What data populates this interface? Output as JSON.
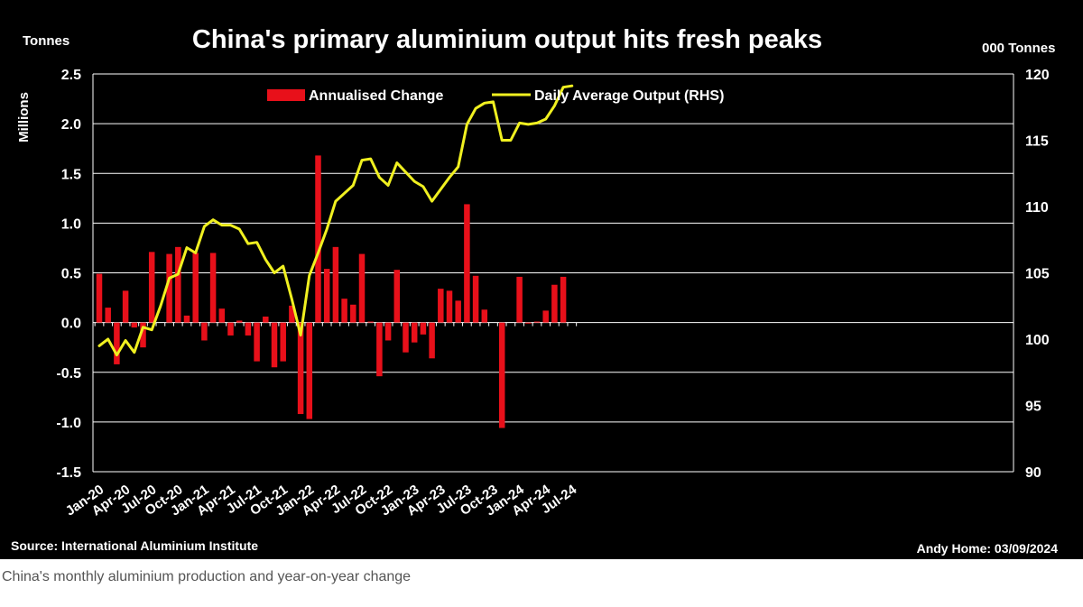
{
  "chart_data": {
    "type": "bar+line",
    "title": "China's primary aluminium output hits fresh peaks",
    "left_axis_unit": "Tonnes",
    "left_axis_label": "Millions",
    "right_axis_unit": "000 Tonnes",
    "ylim_left": [
      -1.5,
      2.5
    ],
    "left_ticks": [
      -1.5,
      -1.0,
      -0.5,
      0.0,
      0.5,
      1.0,
      1.5,
      2.0,
      2.5
    ],
    "ylim_right": [
      90,
      120
    ],
    "right_ticks": [
      90,
      95,
      100,
      105,
      110,
      115,
      120
    ],
    "x_tick_labels": [
      "Jan-20",
      "Apr-20",
      "Jul-20",
      "Oct-20",
      "Jan-21",
      "Apr-21",
      "Jul-21",
      "Oct-21",
      "Jan-22",
      "Apr-22",
      "Jul-22",
      "Oct-22",
      "Jan-23",
      "Apr-23",
      "Jul-23",
      "Oct-23",
      "Jan-24",
      "Apr-24",
      "Jul-24"
    ],
    "months": [
      "Jan-20",
      "Feb-20",
      "Mar-20",
      "Apr-20",
      "May-20",
      "Jun-20",
      "Jul-20",
      "Aug-20",
      "Sep-20",
      "Oct-20",
      "Nov-20",
      "Dec-20",
      "Jan-21",
      "Feb-21",
      "Mar-21",
      "Apr-21",
      "May-21",
      "Jun-21",
      "Jul-21",
      "Aug-21",
      "Sep-21",
      "Oct-21",
      "Nov-21",
      "Dec-21",
      "Jan-22",
      "Feb-22",
      "Mar-22",
      "Apr-22",
      "May-22",
      "Jun-22",
      "Jul-22",
      "Aug-22",
      "Sep-22",
      "Oct-22",
      "Nov-22",
      "Dec-22",
      "Jan-23",
      "Feb-23",
      "Mar-23",
      "Apr-23",
      "May-23",
      "Jun-23",
      "Jul-23",
      "Aug-23",
      "Sep-23",
      "Oct-23",
      "Nov-23",
      "Dec-23",
      "Jan-24",
      "Feb-24",
      "Mar-24",
      "Apr-24",
      "May-24",
      "Jun-24",
      "Jul-24"
    ],
    "series": [
      {
        "name": "Annualised Change",
        "axis": "left",
        "kind": "bar",
        "color": "#e8101a",
        "values": [
          0.49,
          0.15,
          -0.42,
          0.32,
          -0.05,
          -0.25,
          0.71,
          0.0,
          0.69,
          0.76,
          0.07,
          0.7,
          -0.18,
          0.7,
          0.14,
          -0.13,
          0.02,
          -0.13,
          -0.39,
          0.06,
          -0.45,
          -0.39,
          0.17,
          -0.92,
          -0.97,
          1.68,
          0.54,
          0.76,
          0.24,
          0.18,
          0.69,
          0.01,
          -0.54,
          -0.18,
          0.53,
          -0.3,
          -0.2,
          -0.12,
          -0.36,
          0.34,
          0.32,
          0.22,
          1.19,
          0.47,
          0.13,
          0.0,
          -1.06,
          0.0,
          0.46,
          -0.01,
          0.01,
          0.12,
          0.38,
          0.46,
          0.0
        ]
      },
      {
        "name": "Daily Average Output (RHS)",
        "axis": "right",
        "kind": "line",
        "color": "#f0f020",
        "values": [
          99.5,
          100.0,
          98.8,
          99.9,
          99.0,
          100.9,
          100.7,
          102.5,
          104.6,
          104.9,
          106.9,
          106.5,
          108.5,
          109.0,
          108.6,
          108.6,
          108.3,
          107.2,
          107.3,
          106.0,
          105.0,
          105.5,
          103.0,
          100.3,
          104.8,
          106.5,
          108.3,
          110.4,
          111.0,
          111.6,
          113.5,
          113.6,
          112.2,
          111.6,
          113.3,
          112.6,
          111.9,
          111.5,
          110.4,
          111.3,
          112.2,
          113.0,
          116.2,
          117.4,
          117.8,
          117.9,
          115.0,
          115.0,
          116.3,
          116.2,
          116.3,
          116.6,
          117.6,
          119.0,
          119.1
        ]
      }
    ],
    "source": "Source: International Aluminium Institute",
    "credit": "Andy Home: 03/09/2024"
  },
  "caption": "China's monthly aluminium production and year-on-year change",
  "colors": {
    "background": "#000000",
    "bars": "#e8101a",
    "line": "#f0f020",
    "grid": "#ffffff",
    "text": "#ffffff"
  }
}
